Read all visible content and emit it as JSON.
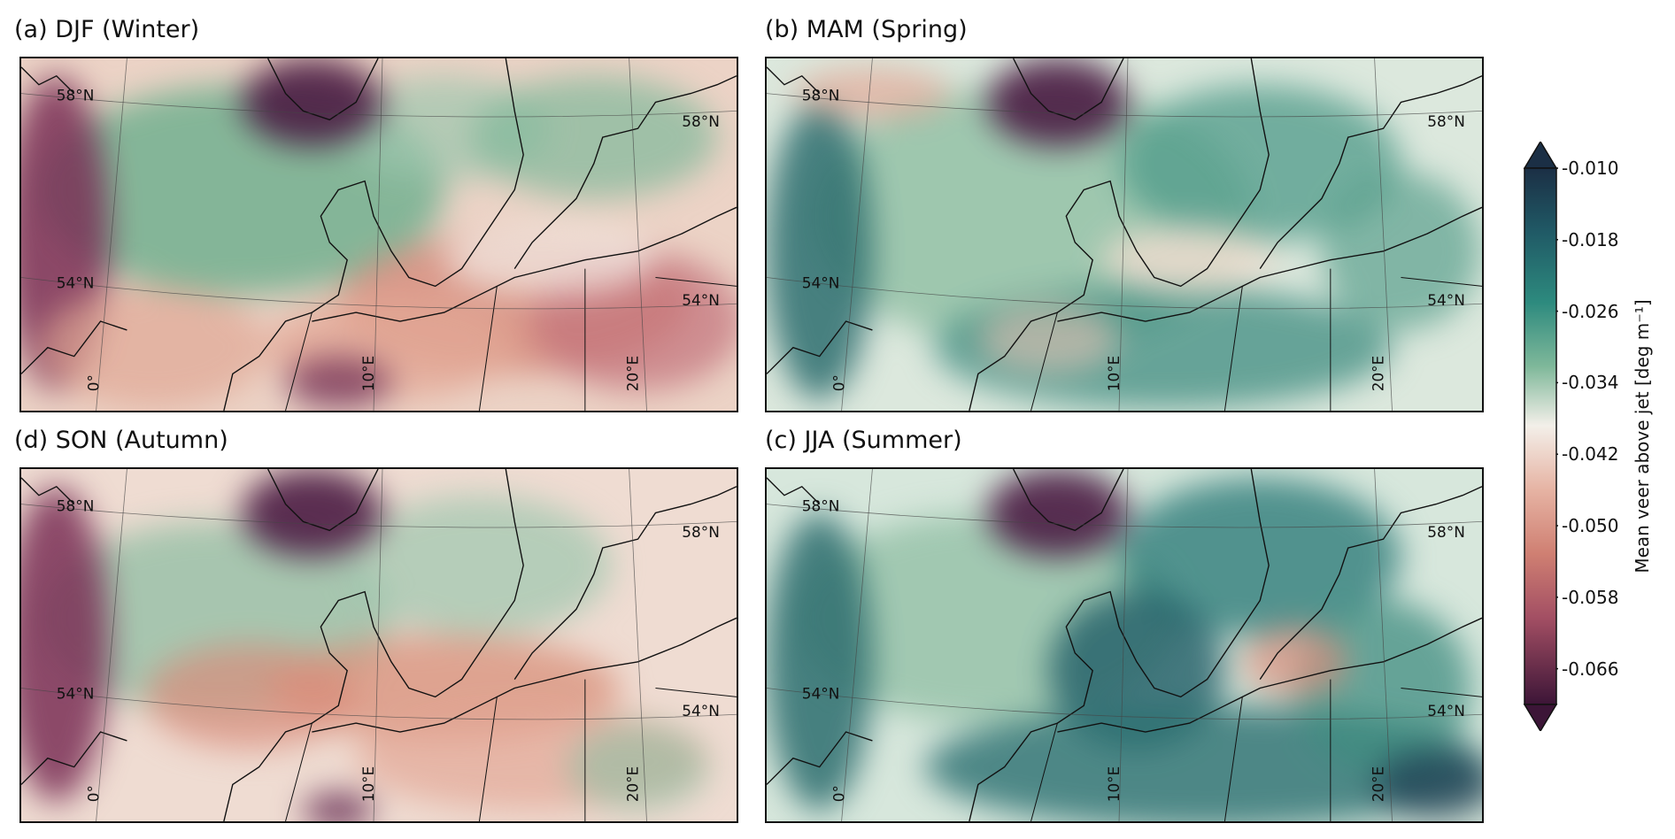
{
  "panels": [
    {
      "id": "djf",
      "title": "(a) DJF (Winter)"
    },
    {
      "id": "mam",
      "title": "(b) MAM (Spring)"
    },
    {
      "id": "son",
      "title": "(d) SON (Autumn)"
    },
    {
      "id": "jja",
      "title": "(c) JJA (Summer)"
    }
  ],
  "map_labels": {
    "lat_north": "58°N",
    "lat_south": "54°N",
    "lon_0": "0°",
    "lon_10": "10°E",
    "lon_20": "20°E"
  },
  "colorbar": {
    "label": "Mean veer above jet [deg m⁻¹]",
    "ticks": [
      "-0.010",
      "-0.018",
      "-0.026",
      "-0.034",
      "-0.042",
      "-0.050",
      "-0.058",
      "-0.066"
    ],
    "min": -0.07,
    "max": -0.01,
    "colors": {
      "dark_teal": "#1b3a4f",
      "teal": "#2a7f7a",
      "green": "#6aae8c",
      "white": "#f3efe9",
      "salmon": "#d9917f",
      "red": "#b0555e",
      "purple": "#3c1537"
    }
  }
}
